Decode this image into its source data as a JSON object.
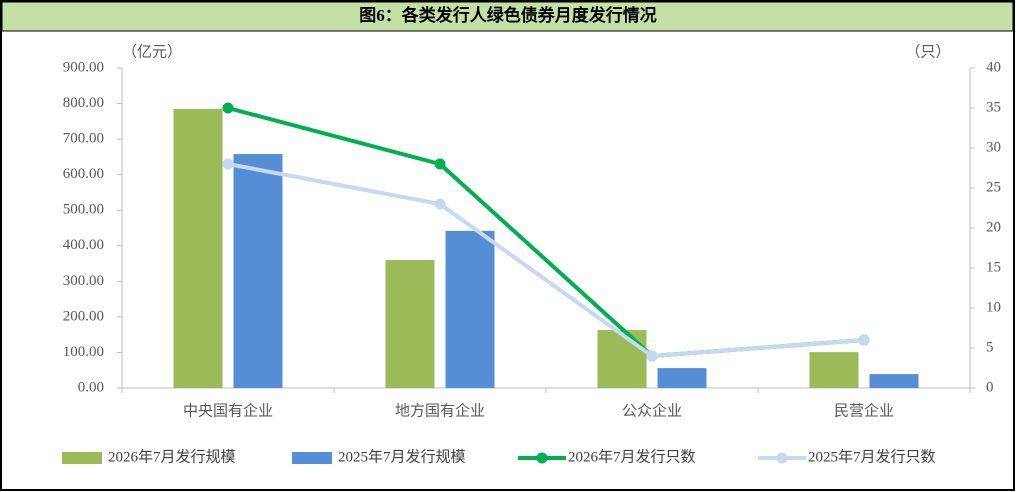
{
  "chart_data": {
    "type": "combo",
    "title": "图6：各类发行人绿色债券月度发行情况",
    "y_label": "（亿元）",
    "y2_label": "（只）",
    "categories": [
      "中央国有企业",
      "地方国有企业",
      "公众企业",
      "民营企业"
    ],
    "series": [
      {
        "name": "2026年7月发行规模",
        "type": "bar",
        "color": "#9bbb59",
        "values": [
          785,
          360,
          163,
          101
        ]
      },
      {
        "name": "2025年7月发行规模",
        "type": "bar",
        "color": "#558ed5",
        "values": [
          658,
          442,
          56,
          39
        ]
      },
      {
        "name": "2026年7月发行只数",
        "type": "line",
        "axis": "y2",
        "color": "#00b050",
        "values": [
          35,
          28,
          4,
          6
        ]
      },
      {
        "name": "2025年7月发行只数",
        "type": "line",
        "axis": "y2",
        "color": "#c6d9f1",
        "values": [
          28,
          23,
          4,
          6
        ]
      }
    ],
    "ylim": [
      0,
      900
    ],
    "yticks": [
      {
        "value": 0,
        "label": "0.00"
      },
      {
        "value": 100,
        "label": "100.00"
      },
      {
        "value": 200,
        "label": "200.00"
      },
      {
        "value": 300,
        "label": "300.00"
      },
      {
        "value": 400,
        "label": "400.00"
      },
      {
        "value": 500,
        "label": "500.00"
      },
      {
        "value": 600,
        "label": "600.00"
      },
      {
        "value": 700,
        "label": "700.00"
      },
      {
        "value": 800,
        "label": "800.00"
      },
      {
        "value": 900,
        "label": "900.00"
      }
    ],
    "y2lim": [
      0,
      40
    ],
    "y2ticks": [
      0,
      5,
      10,
      15,
      20,
      25,
      30,
      35,
      40
    ],
    "grid": false,
    "legend": "bottom"
  }
}
